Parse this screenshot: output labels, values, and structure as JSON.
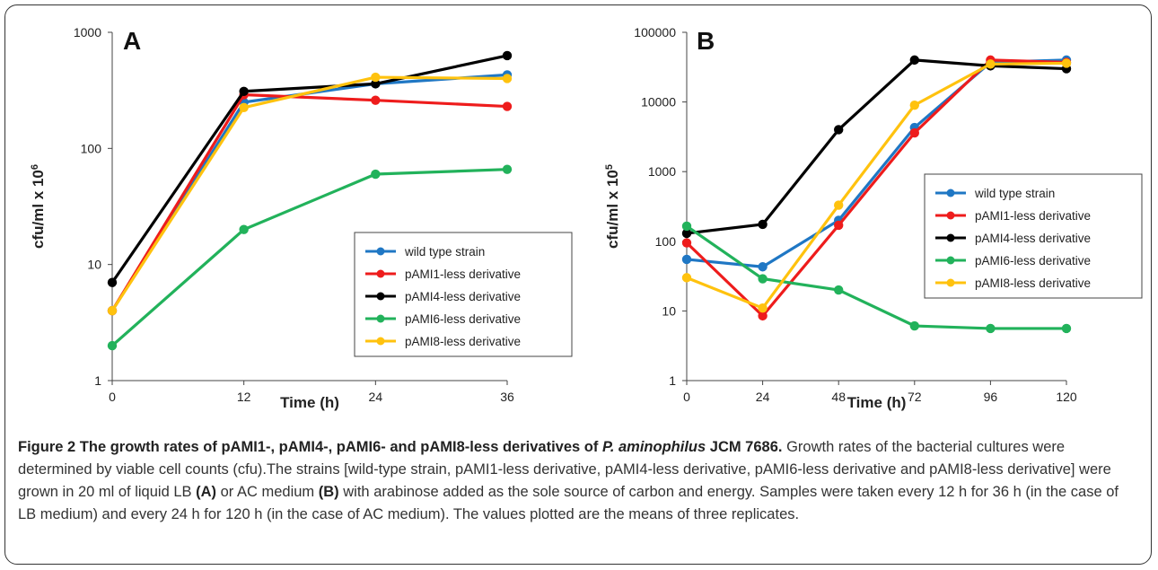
{
  "chart_data": [
    {
      "type": "line",
      "panel": "A",
      "ylabel": "cfu/ml x 10",
      "ylabel_sup": "6",
      "xlabel": "Time (h)",
      "yscale": "log",
      "ylim": [
        1,
        1000
      ],
      "yticks": [
        1,
        10,
        100,
        1000
      ],
      "x": [
        0,
        12,
        24,
        36
      ],
      "xlim": [
        0,
        36
      ],
      "legend_position": "lower-right",
      "series": [
        {
          "name": "wild type strain",
          "color": "#1f77c4",
          "values": [
            4,
            250,
            360,
            430
          ]
        },
        {
          "name": "pAMI1-less derivative",
          "color": "#ee1c1c",
          "values": [
            4,
            290,
            260,
            230
          ]
        },
        {
          "name": "pAMI4-less derivative",
          "color": "#000000",
          "values": [
            7,
            310,
            360,
            630
          ]
        },
        {
          "name": "pAMI6-less derivative",
          "color": "#22b25b",
          "values": [
            2,
            20,
            60,
            66
          ]
        },
        {
          "name": "pAMI8-less derivative",
          "color": "#ffc20e",
          "values": [
            4,
            225,
            410,
            400
          ]
        }
      ]
    },
    {
      "type": "line",
      "panel": "B",
      "ylabel": "cfu/ml x 10",
      "ylabel_sup": "5",
      "xlabel": "Time (h)",
      "yscale": "log",
      "ylim": [
        1,
        100000
      ],
      "yticks": [
        1,
        10,
        100,
        1000,
        10000,
        100000
      ],
      "x": [
        0,
        24,
        48,
        72,
        96,
        120
      ],
      "xlim": [
        0,
        120
      ],
      "legend_position": "center-right",
      "series": [
        {
          "name": "wild type strain",
          "color": "#1f77c4",
          "values": [
            55,
            43,
            200,
            4300,
            37000,
            40000
          ]
        },
        {
          "name": "pAMI1-less derivative",
          "color": "#ee1c1c",
          "values": [
            95,
            8.5,
            170,
            3600,
            40000,
            37000
          ]
        },
        {
          "name": "pAMI4-less derivative",
          "color": "#000000",
          "values": [
            130,
            175,
            4000,
            40000,
            33000,
            30000
          ]
        },
        {
          "name": "pAMI6-less derivative",
          "color": "#22b25b",
          "values": [
            165,
            29,
            20,
            6.1,
            5.6,
            5.6
          ]
        },
        {
          "name": "pAMI8-less derivative",
          "color": "#ffc20e",
          "values": [
            30,
            11,
            330,
            9000,
            35000,
            36000
          ]
        }
      ]
    }
  ],
  "caption": {
    "label": "Figure 2",
    "title_pre": "The growth rates of pAMI1-, pAMI4-, pAMI6- and pAMI8-less derivatives of",
    "title_italic": "P. aminophilus",
    "title_post": "JCM 7686.",
    "body_1": "Growth rates of the bacterial cultures were determined by viable cell counts (cfu).The strains [wild-type strain, pAMI1-less derivative, pAMI4-less derivative, pAMI6-less derivative and pAMI8-less derivative] were grown in 20 ml of liquid LB",
    "ref_a": "(A)",
    "body_2": "or AC medium",
    "ref_b": "(B)",
    "body_3": "with arabinose added as the sole source of carbon and energy. Samples were taken every 12 h for 36 h (in the case of LB medium) and every 24 h for 120 h (in the case of AC medium). The values plotted are the means of three replicates."
  }
}
